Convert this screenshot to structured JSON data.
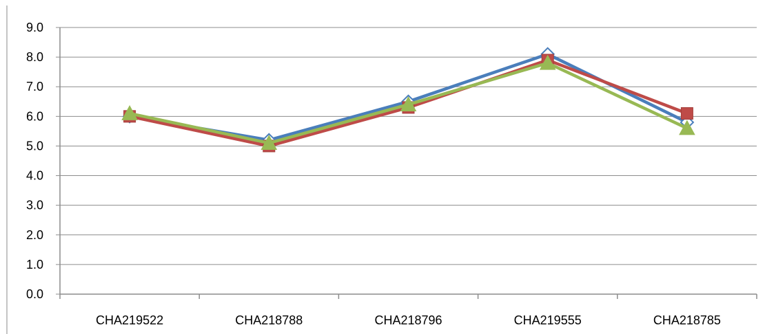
{
  "chart_data": {
    "type": "line",
    "title": "",
    "xlabel": "",
    "ylabel": "",
    "categories": [
      "CHA219522",
      "CHA218788",
      "CHA218796",
      "CHA219555",
      "CHA218785"
    ],
    "ylim": [
      0,
      9
    ],
    "yticks": [
      "0.0",
      "1.0",
      "2.0",
      "3.0",
      "4.0",
      "5.0",
      "6.0",
      "7.0",
      "8.0",
      "9.0"
    ],
    "grid": true,
    "legend": "none",
    "series": [
      {
        "values": [
          6.0,
          5.2,
          6.5,
          8.1,
          5.8
        ],
        "color": "#4a7ebb",
        "marker": "diamond"
      },
      {
        "values": [
          6.0,
          5.0,
          6.3,
          7.9,
          6.1
        ],
        "color": "#be4b48",
        "marker": "square"
      },
      {
        "values": [
          6.1,
          5.1,
          6.4,
          7.8,
          5.6
        ],
        "color": "#98b954",
        "marker": "triangle"
      }
    ]
  }
}
